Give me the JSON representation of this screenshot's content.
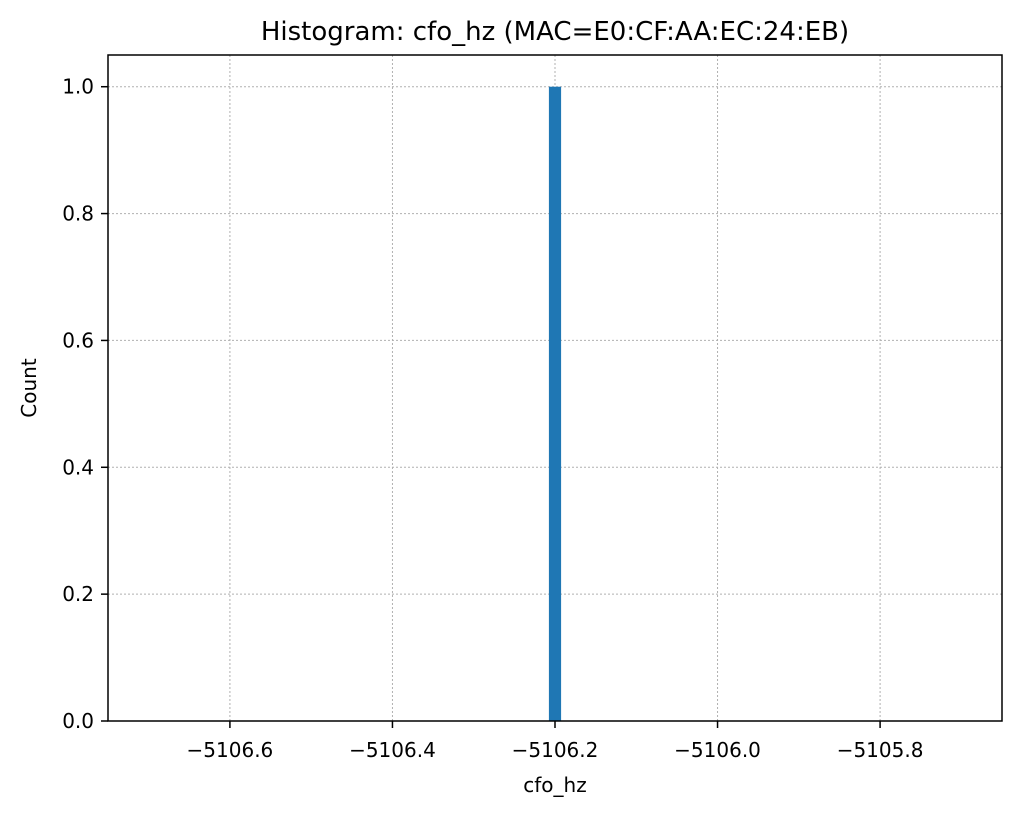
{
  "chart_data": {
    "type": "bar",
    "title": "Histogram: cfo_hz (MAC=E0:CF:AA:EC:24:EB)",
    "xlabel": "cfo_hz",
    "ylabel": "Count",
    "xlim": [
      -5106.75,
      -5105.65
    ],
    "ylim": [
      0,
      1.05
    ],
    "grid": true,
    "bar_color": "#1f77b4",
    "bins": [
      {
        "x0": -5106.2075,
        "x1": -5106.1925,
        "count": 1
      }
    ],
    "xticks": [
      {
        "value": -5106.6,
        "label": "−5106.6"
      },
      {
        "value": -5106.4,
        "label": "−5106.4"
      },
      {
        "value": -5106.2,
        "label": "−5106.2"
      },
      {
        "value": -5106.0,
        "label": "−5106.0"
      },
      {
        "value": -5105.8,
        "label": "−5105.8"
      }
    ],
    "yticks": [
      {
        "value": 0.0,
        "label": "0.0"
      },
      {
        "value": 0.2,
        "label": "0.2"
      },
      {
        "value": 0.4,
        "label": "0.4"
      },
      {
        "value": 0.6,
        "label": "0.6"
      },
      {
        "value": 0.8,
        "label": "0.8"
      },
      {
        "value": 1.0,
        "label": "1.0"
      }
    ]
  }
}
